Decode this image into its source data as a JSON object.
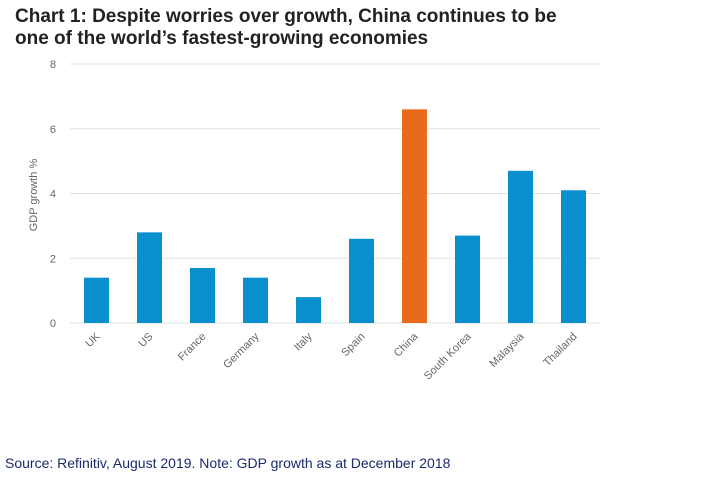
{
  "title_line1": "Chart 1: Despite worries over growth, China continues to be",
  "title_line2": "one of the world’s fastest-growing economies",
  "source": "Source: Refinitiv, August 2019. Note: GDP growth as at December 2018",
  "chart_data": {
    "type": "bar",
    "title": "Chart 1: Despite worries over growth, China continues to be one of the world’s fastest-growing economies",
    "xlabel": "",
    "ylabel": "GDP growth %",
    "ylim": [
      0,
      8
    ],
    "yticks": [
      0,
      2,
      4,
      6,
      8
    ],
    "grid": true,
    "categories": [
      "UK",
      "US",
      "France",
      "Germany",
      "Italy",
      "Spain",
      "China",
      "South Korea",
      "Malaysia",
      "Thailand"
    ],
    "values": [
      1.4,
      2.8,
      1.7,
      1.4,
      0.8,
      2.6,
      6.6,
      2.7,
      4.7,
      4.1
    ],
    "colors": {
      "default": "#0a8fce",
      "highlight": "#ea6a1b",
      "highlight_category": "China",
      "grid": "#e2e2e2",
      "axis_text": "#666666"
    }
  }
}
